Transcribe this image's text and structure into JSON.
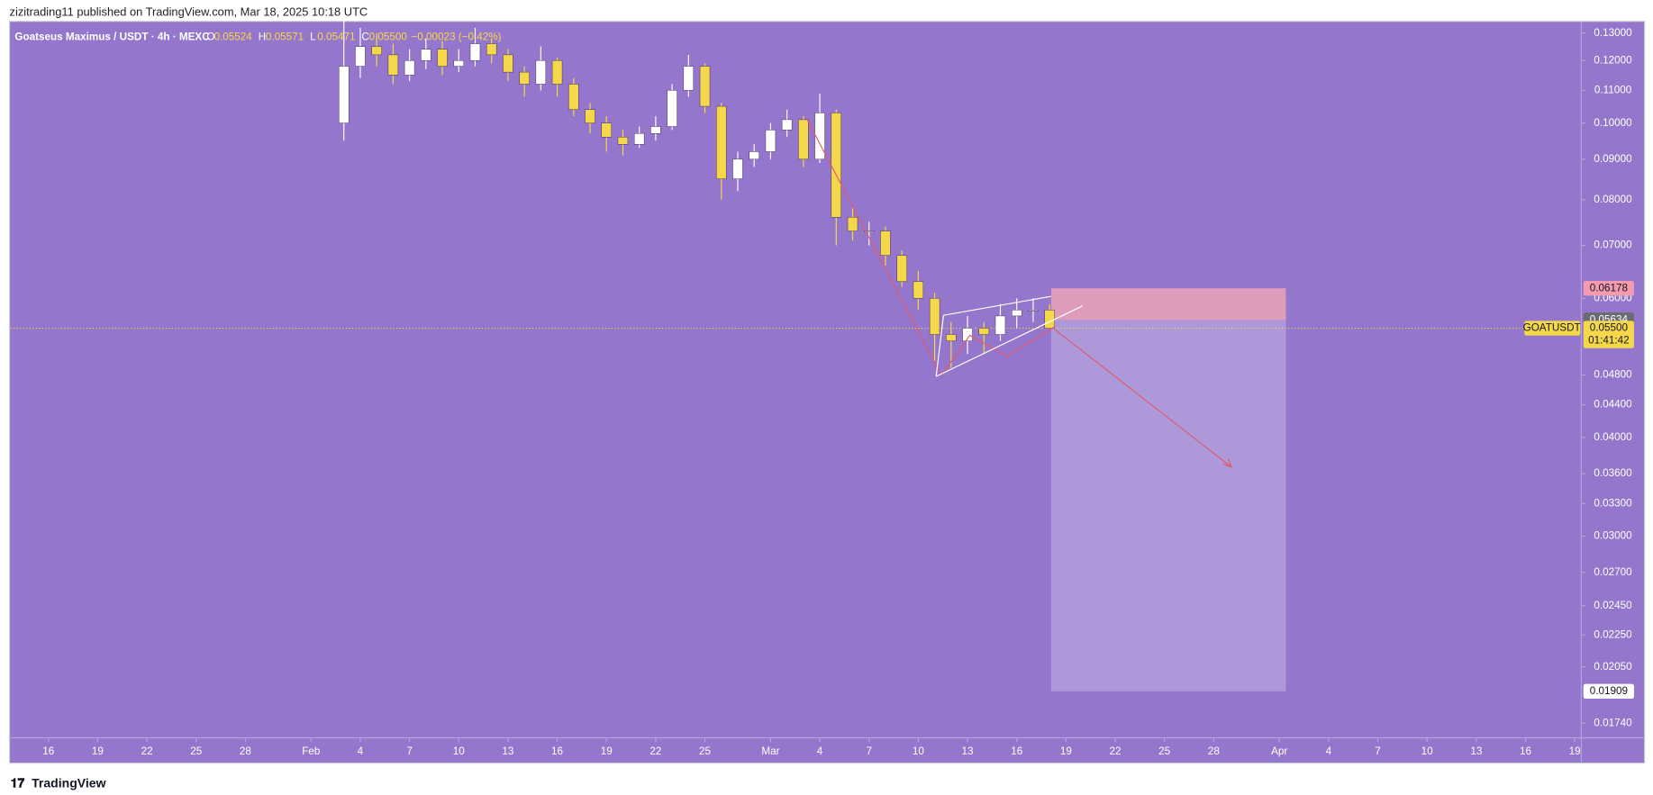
{
  "header": "zizitrading11 published on TradingView.com, Mar 18, 2025 10:18 UTC",
  "footer": "TradingView",
  "chart_data": {
    "type": "candlestick",
    "title": "Goatseus Maximus / USDT · 4h · MEXC",
    "ohlc_legend": {
      "O": "0.05524",
      "H": "0.05571",
      "L": "0.05471",
      "C": "0.05500",
      "change": "−0.00023 (−0.42%)"
    },
    "log_scale": true,
    "background": "#9477cc",
    "up_color": "#ffffff",
    "down_color": "#f5d84a",
    "x": [
      34,
      35,
      36,
      37,
      38,
      39,
      40,
      41,
      42,
      43,
      44,
      45,
      46,
      47,
      48,
      49,
      50,
      51,
      52,
      53,
      54,
      55,
      56,
      57,
      58,
      59,
      60,
      61,
      62,
      63,
      64,
      65,
      66,
      67,
      68,
      69,
      70,
      71,
      72,
      73,
      74,
      75,
      76,
      77
    ],
    "open": [
      0.1,
      0.118,
      0.125,
      0.122,
      0.115,
      0.12,
      0.124,
      0.118,
      0.12,
      0.126,
      0.122,
      0.116,
      0.112,
      0.12,
      0.112,
      0.104,
      0.1,
      0.096,
      0.094,
      0.097,
      0.099,
      0.11,
      0.118,
      0.105,
      0.085,
      0.09,
      0.092,
      0.098,
      0.101,
      0.09,
      0.103,
      0.076,
      0.073,
      0.073,
      0.068,
      0.063,
      0.06,
      0.054,
      0.053,
      0.055,
      0.054,
      0.057,
      0.058,
      0.058
    ],
    "high": [
      0.135,
      0.132,
      0.13,
      0.126,
      0.124,
      0.128,
      0.127,
      0.124,
      0.132,
      0.128,
      0.124,
      0.118,
      0.125,
      0.121,
      0.114,
      0.106,
      0.102,
      0.098,
      0.099,
      0.102,
      0.112,
      0.122,
      0.119,
      0.106,
      0.092,
      0.094,
      0.1,
      0.104,
      0.102,
      0.109,
      0.104,
      0.078,
      0.075,
      0.074,
      0.069,
      0.065,
      0.061,
      0.056,
      0.057,
      0.056,
      0.059,
      0.06,
      0.06,
      0.059
    ],
    "low": [
      0.095,
      0.114,
      0.118,
      0.112,
      0.113,
      0.117,
      0.115,
      0.116,
      0.118,
      0.119,
      0.113,
      0.108,
      0.11,
      0.108,
      0.102,
      0.097,
      0.092,
      0.091,
      0.093,
      0.095,
      0.098,
      0.108,
      0.103,
      0.08,
      0.082,
      0.088,
      0.09,
      0.096,
      0.088,
      0.089,
      0.07,
      0.071,
      0.07,
      0.066,
      0.062,
      0.058,
      0.05,
      0.049,
      0.051,
      0.051,
      0.053,
      0.055,
      0.056,
      0.055
    ],
    "close": [
      0.118,
      0.125,
      0.122,
      0.115,
      0.12,
      0.124,
      0.118,
      0.12,
      0.126,
      0.122,
      0.116,
      0.112,
      0.12,
      0.112,
      0.104,
      0.1,
      0.096,
      0.094,
      0.097,
      0.099,
      0.11,
      0.118,
      0.105,
      0.085,
      0.09,
      0.092,
      0.098,
      0.101,
      0.09,
      0.103,
      0.076,
      0.073,
      0.073,
      0.068,
      0.063,
      0.06,
      0.054,
      0.053,
      0.055,
      0.054,
      0.057,
      0.058,
      0.058,
      0.055
    ],
    "xlim": [
      13.69,
      109.4
    ],
    "xticks": [
      {
        "value": 16,
        "label": "16"
      },
      {
        "value": 19,
        "label": "19"
      },
      {
        "value": 22,
        "label": "22"
      },
      {
        "value": 25,
        "label": "25"
      },
      {
        "value": 28,
        "label": "28"
      },
      {
        "value": 32,
        "label": "Feb"
      },
      {
        "value": 35,
        "label": "4"
      },
      {
        "value": 38,
        "label": "7"
      },
      {
        "value": 41,
        "label": "10"
      },
      {
        "value": 44,
        "label": "13"
      },
      {
        "value": 47,
        "label": "16"
      },
      {
        "value": 50,
        "label": "19"
      },
      {
        "value": 53,
        "label": "22"
      },
      {
        "value": 56,
        "label": "25"
      },
      {
        "value": 60,
        "label": "Mar"
      },
      {
        "value": 63,
        "label": "4"
      },
      {
        "value": 66,
        "label": "7"
      },
      {
        "value": 69,
        "label": "10"
      },
      {
        "value": 72,
        "label": "13"
      },
      {
        "value": 75,
        "label": "16"
      },
      {
        "value": 78,
        "label": "19"
      },
      {
        "value": 81,
        "label": "22"
      },
      {
        "value": 84,
        "label": "25"
      },
      {
        "value": 87,
        "label": "28"
      },
      {
        "value": 91,
        "label": "Apr"
      },
      {
        "value": 94,
        "label": "4"
      },
      {
        "value": 97,
        "label": "7"
      },
      {
        "value": 100,
        "label": "10"
      },
      {
        "value": 103,
        "label": "13"
      },
      {
        "value": 106,
        "label": "16"
      },
      {
        "value": 109,
        "label": "19"
      }
    ],
    "ylim": [
      0.01667,
      0.1345
    ],
    "yticks": [
      {
        "value": 0.13,
        "label": "0.13000"
      },
      {
        "value": 0.12,
        "label": "0.12000"
      },
      {
        "value": 0.11,
        "label": "0.11000"
      },
      {
        "value": 0.1,
        "label": "0.10000"
      },
      {
        "value": 0.09,
        "label": "0.09000"
      },
      {
        "value": 0.08,
        "label": "0.08000"
      },
      {
        "value": 0.07,
        "label": "0.07000"
      },
      {
        "value": 0.06,
        "label": "0.06000"
      },
      {
        "value": 0.048,
        "label": "0.04800"
      },
      {
        "value": 0.044,
        "label": "0.04400"
      },
      {
        "value": 0.04,
        "label": "0.04000"
      },
      {
        "value": 0.036,
        "label": "0.03600"
      },
      {
        "value": 0.033,
        "label": "0.03300"
      },
      {
        "value": 0.03,
        "label": "0.03000"
      },
      {
        "value": 0.027,
        "label": "0.02700"
      },
      {
        "value": 0.0245,
        "label": "0.02450"
      },
      {
        "value": 0.0225,
        "label": "0.02250"
      },
      {
        "value": 0.0205,
        "label": "0.02050"
      },
      {
        "value": 0.0174,
        "label": "0.01740"
      }
    ],
    "stop": 0.06178,
    "entry": 0.05634,
    "target": 0.01909,
    "position_x": [
      77.1,
      91.4
    ],
    "last": {
      "value": 0.055,
      "label": "0.05500"
    },
    "symbol": "GOATUSDT",
    "countdown": "01:41:42"
  }
}
